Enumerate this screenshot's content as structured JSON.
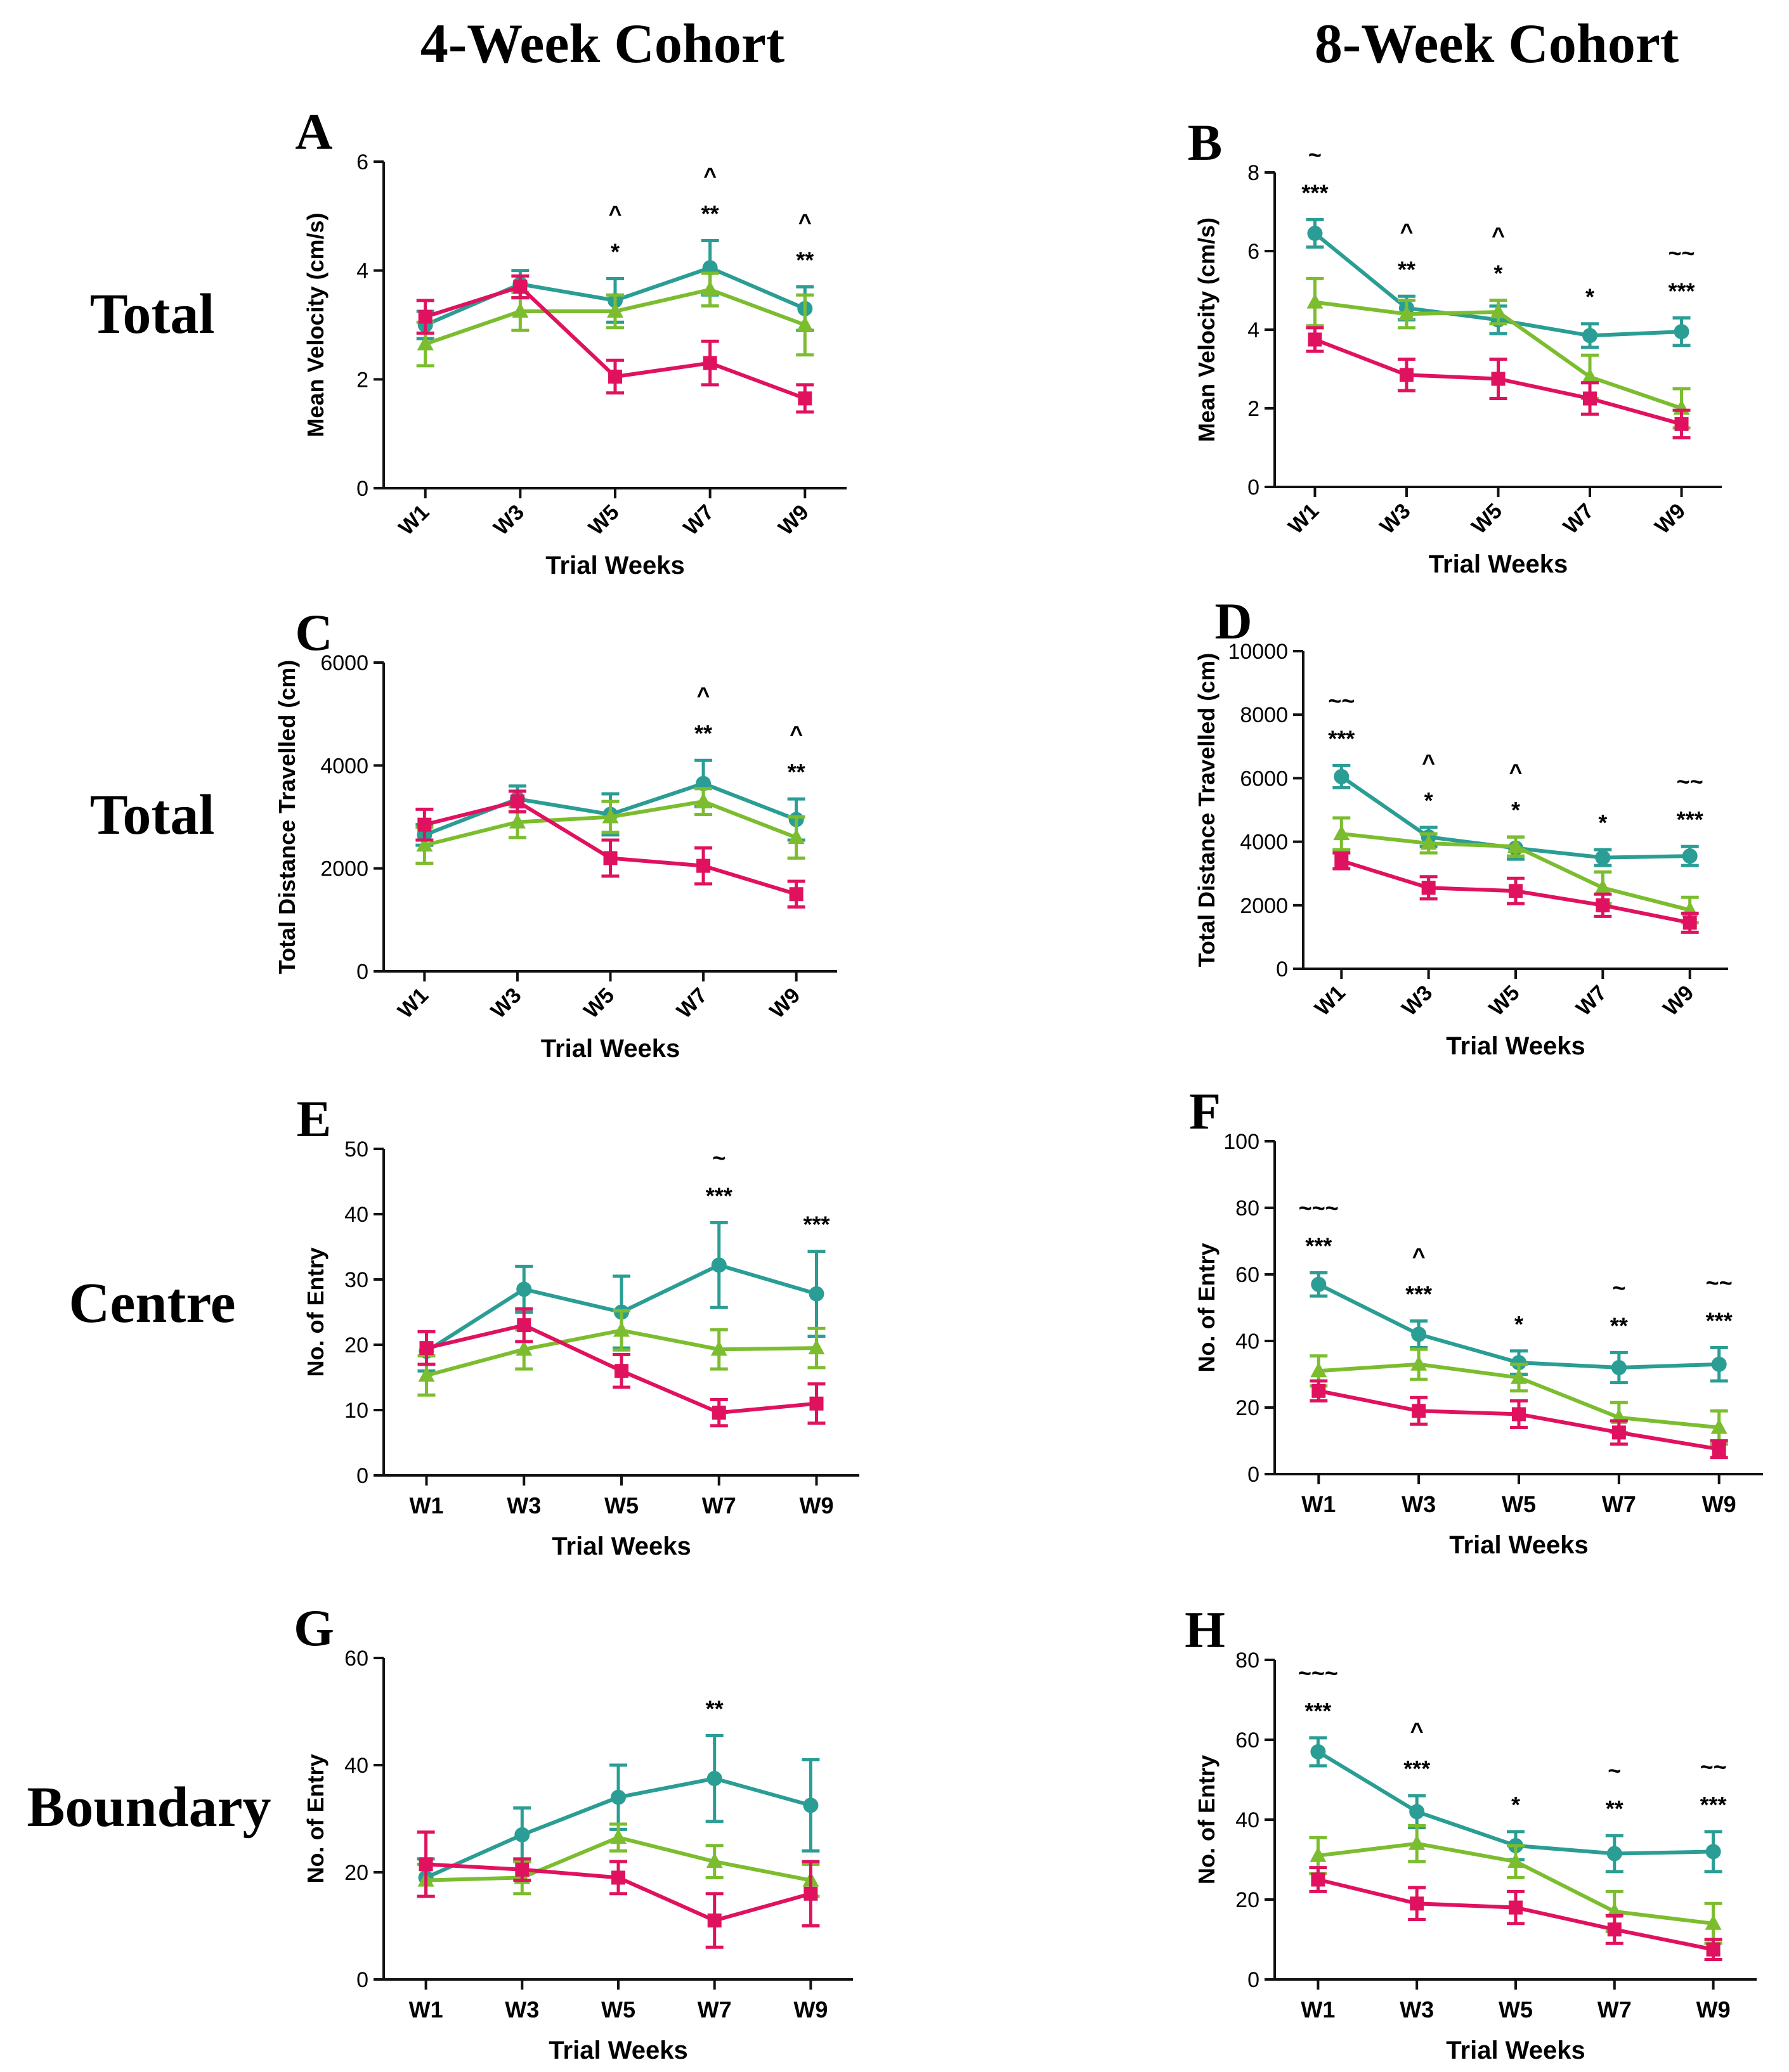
{
  "headers": {
    "left": "4-Week Cohort",
    "right": "8-Week Cohort"
  },
  "row_labels": [
    "Total",
    "Total",
    "Centre",
    "Boundary"
  ],
  "colors": {
    "teal": "#2a9d94",
    "green": "#7cbd2f",
    "magenta": "#e0125f"
  },
  "chart_data": [
    {
      "panel": "A",
      "type": "line",
      "xlabel": "Trial Weeks",
      "ylabel": "Mean Velocity (cm/s)",
      "categories": [
        "W1",
        "W3",
        "W5",
        "W7",
        "W9"
      ],
      "ylim": [
        0,
        6
      ],
      "yticks": [
        0,
        2,
        4,
        6
      ],
      "rotate_x": true,
      "series": [
        {
          "name": "teal",
          "marker": "circle",
          "values": [
            3.0,
            3.75,
            3.45,
            4.05,
            3.3
          ],
          "err": [
            0.25,
            0.25,
            0.4,
            0.5,
            0.4
          ]
        },
        {
          "name": "green",
          "marker": "triangle",
          "values": [
            2.65,
            3.25,
            3.25,
            3.65,
            3.0
          ],
          "err": [
            0.4,
            0.35,
            0.3,
            0.3,
            0.55
          ]
        },
        {
          "name": "magenta",
          "marker": "square",
          "values": [
            3.15,
            3.7,
            2.05,
            2.3,
            1.65
          ],
          "err": [
            0.3,
            0.2,
            0.3,
            0.4,
            0.25
          ]
        }
      ],
      "annotations": [
        {
          "x": "W5",
          "lines": [
            "^",
            "*"
          ]
        },
        {
          "x": "W7",
          "lines": [
            "^",
            "**"
          ]
        },
        {
          "x": "W9",
          "lines": [
            "^",
            "**"
          ]
        }
      ]
    },
    {
      "panel": "B",
      "type": "line",
      "xlabel": "Trial Weeks",
      "ylabel": "Mean Velocity (cm/s)",
      "categories": [
        "W1",
        "W3",
        "W5",
        "W7",
        "W9"
      ],
      "ylim": [
        0,
        8
      ],
      "yticks": [
        0,
        2,
        4,
        6,
        8
      ],
      "rotate_x": true,
      "series": [
        {
          "name": "teal",
          "marker": "circle",
          "values": [
            6.45,
            4.55,
            4.25,
            3.85,
            3.95
          ],
          "err": [
            0.35,
            0.3,
            0.35,
            0.3,
            0.35
          ]
        },
        {
          "name": "green",
          "marker": "triangle",
          "values": [
            4.7,
            4.4,
            4.45,
            2.8,
            2.0
          ],
          "err": [
            0.6,
            0.35,
            0.3,
            0.55,
            0.5
          ]
        },
        {
          "name": "magenta",
          "marker": "square",
          "values": [
            3.75,
            2.85,
            2.75,
            2.25,
            1.6
          ],
          "err": [
            0.3,
            0.4,
            0.5,
            0.4,
            0.35
          ]
        }
      ],
      "annotations": [
        {
          "x": "W1",
          "lines": [
            "~",
            "***"
          ]
        },
        {
          "x": "W3",
          "lines": [
            "^",
            "**"
          ]
        },
        {
          "x": "W5",
          "lines": [
            "^",
            "*"
          ]
        },
        {
          "x": "W7",
          "lines": [
            "*"
          ]
        },
        {
          "x": "W9",
          "lines": [
            "~~",
            "***"
          ]
        }
      ]
    },
    {
      "panel": "C",
      "type": "line",
      "xlabel": "Trial Weeks",
      "ylabel": "Total Distance Travelled (cm)",
      "categories": [
        "W1",
        "W3",
        "W5",
        "W7",
        "W9"
      ],
      "ylim": [
        0,
        6000
      ],
      "yticks": [
        0,
        2000,
        4000,
        6000
      ],
      "rotate_x": true,
      "series": [
        {
          "name": "teal",
          "marker": "circle",
          "values": [
            2650,
            3350,
            3050,
            3650,
            2950
          ],
          "err": [
            200,
            250,
            400,
            450,
            400
          ]
        },
        {
          "name": "green",
          "marker": "triangle",
          "values": [
            2450,
            2900,
            3000,
            3300,
            2600
          ],
          "err": [
            350,
            300,
            300,
            250,
            400
          ]
        },
        {
          "name": "magenta",
          "marker": "square",
          "values": [
            2850,
            3300,
            2200,
            2050,
            1500
          ],
          "err": [
            300,
            200,
            350,
            350,
            250
          ]
        }
      ],
      "annotations": [
        {
          "x": "W7",
          "lines": [
            "^",
            "**"
          ]
        },
        {
          "x": "W9",
          "lines": [
            "^",
            "**"
          ]
        }
      ]
    },
    {
      "panel": "D",
      "type": "line",
      "xlabel": "Trial Weeks",
      "ylabel": "Total Distance Travelled (cm)",
      "categories": [
        "W1",
        "W3",
        "W5",
        "W7",
        "W9"
      ],
      "ylim": [
        0,
        10000
      ],
      "yticks": [
        0,
        2000,
        4000,
        6000,
        8000,
        10000
      ],
      "rotate_x": true,
      "series": [
        {
          "name": "teal",
          "marker": "circle",
          "values": [
            6050,
            4150,
            3800,
            3500,
            3550
          ],
          "err": [
            350,
            300,
            350,
            250,
            300
          ]
        },
        {
          "name": "green",
          "marker": "triangle",
          "values": [
            4250,
            3950,
            3850,
            2550,
            1850
          ],
          "err": [
            500,
            300,
            300,
            500,
            400
          ]
        },
        {
          "name": "magenta",
          "marker": "square",
          "values": [
            3400,
            2550,
            2450,
            2000,
            1450
          ],
          "err": [
            250,
            350,
            400,
            350,
            300
          ]
        }
      ],
      "annotations": [
        {
          "x": "W1",
          "lines": [
            "~~",
            "***"
          ]
        },
        {
          "x": "W3",
          "lines": [
            "^",
            "*"
          ]
        },
        {
          "x": "W5",
          "lines": [
            "^",
            "*"
          ]
        },
        {
          "x": "W7",
          "lines": [
            "*"
          ]
        },
        {
          "x": "W9",
          "lines": [
            "~~",
            "***"
          ]
        }
      ]
    },
    {
      "panel": "E",
      "type": "line",
      "xlabel": "Trial Weeks",
      "ylabel": "No. of Entry",
      "categories": [
        "W1",
        "W3",
        "W5",
        "W7",
        "W9"
      ],
      "ylim": [
        0,
        50
      ],
      "yticks": [
        0,
        10,
        20,
        30,
        40,
        50
      ],
      "rotate_x": false,
      "series": [
        {
          "name": "teal",
          "marker": "circle",
          "values": [
            19,
            28.5,
            25,
            32.2,
            27.8
          ],
          "err": [
            3,
            3.5,
            5.5,
            6.5,
            6.5
          ]
        },
        {
          "name": "green",
          "marker": "triangle",
          "values": [
            15.3,
            19.3,
            22.2,
            19.3,
            19.5
          ],
          "err": [
            3,
            3,
            3,
            3,
            3
          ]
        },
        {
          "name": "magenta",
          "marker": "square",
          "values": [
            19.5,
            23.0,
            16.0,
            9.6,
            11.0
          ],
          "err": [
            2.5,
            2.5,
            2.5,
            2,
            3
          ]
        }
      ],
      "annotations": [
        {
          "x": "W7",
          "lines": [
            "~",
            "***"
          ]
        },
        {
          "x": "W9",
          "lines": [
            "***"
          ]
        }
      ]
    },
    {
      "panel": "F",
      "type": "line",
      "xlabel": "Trial Weeks",
      "ylabel": "No. of Entry",
      "categories": [
        "W1",
        "W3",
        "W5",
        "W7",
        "W9"
      ],
      "ylim": [
        0,
        100
      ],
      "yticks": [
        0,
        20,
        40,
        60,
        80,
        100
      ],
      "rotate_x": false,
      "series": [
        {
          "name": "teal",
          "marker": "circle",
          "values": [
            57,
            42,
            33.5,
            32,
            33
          ],
          "err": [
            3.5,
            4,
            3.5,
            4.5,
            5
          ]
        },
        {
          "name": "green",
          "marker": "triangle",
          "values": [
            31,
            33,
            29,
            17,
            14
          ],
          "err": [
            4.5,
            4.5,
            4,
            4.5,
            5
          ]
        },
        {
          "name": "magenta",
          "marker": "square",
          "values": [
            25,
            19,
            18,
            12.5,
            7.5
          ],
          "err": [
            3,
            4,
            4,
            3.5,
            2.5
          ]
        }
      ],
      "annotations": [
        {
          "x": "W1",
          "lines": [
            "~~~",
            "***"
          ]
        },
        {
          "x": "W3",
          "lines": [
            "^",
            "***"
          ]
        },
        {
          "x": "W5",
          "lines": [
            "*"
          ]
        },
        {
          "x": "W7",
          "lines": [
            "~",
            "**"
          ]
        },
        {
          "x": "W9",
          "lines": [
            "~~",
            "***"
          ]
        }
      ]
    },
    {
      "panel": "G",
      "type": "line",
      "xlabel": "Trial Weeks",
      "ylabel": "No. of Entry",
      "categories": [
        "W1",
        "W3",
        "W5",
        "W7",
        "W9"
      ],
      "ylim": [
        0,
        60
      ],
      "yticks": [
        0,
        20,
        40,
        60
      ],
      "rotate_x": false,
      "series": [
        {
          "name": "teal",
          "marker": "circle",
          "values": [
            19,
            27,
            34,
            37.5,
            32.5
          ],
          "err": [
            3.5,
            5,
            6,
            8,
            8.5
          ]
        },
        {
          "name": "green",
          "marker": "triangle",
          "values": [
            18.5,
            19,
            26.5,
            22,
            18.5
          ],
          "err": [
            3,
            3,
            2.5,
            3,
            3
          ]
        },
        {
          "name": "magenta",
          "marker": "square",
          "values": [
            21.5,
            20.5,
            19,
            11,
            16
          ],
          "err": [
            6,
            2,
            3,
            5,
            6
          ]
        }
      ],
      "annotations": [
        {
          "x": "W7",
          "lines": [
            "**"
          ]
        }
      ]
    },
    {
      "panel": "H",
      "type": "line",
      "xlabel": "Trial Weeks",
      "ylabel": "No. of Entry",
      "categories": [
        "W1",
        "W3",
        "W5",
        "W7",
        "W9"
      ],
      "ylim": [
        0,
        80
      ],
      "yticks": [
        0,
        20,
        40,
        60,
        80
      ],
      "rotate_x": false,
      "series": [
        {
          "name": "teal",
          "marker": "circle",
          "values": [
            57,
            42,
            33.5,
            31.5,
            32
          ],
          "err": [
            3.5,
            4,
            3.5,
            4.5,
            5
          ]
        },
        {
          "name": "green",
          "marker": "triangle",
          "values": [
            31,
            34,
            29.5,
            17,
            14
          ],
          "err": [
            4.5,
            4.5,
            4,
            5,
            5
          ]
        },
        {
          "name": "magenta",
          "marker": "square",
          "values": [
            25,
            19,
            18,
            12.5,
            7.5
          ],
          "err": [
            3,
            4,
            4,
            3.5,
            2.5
          ]
        }
      ],
      "annotations": [
        {
          "x": "W1",
          "lines": [
            "~~~",
            "***"
          ]
        },
        {
          "x": "W3",
          "lines": [
            "^",
            "***"
          ]
        },
        {
          "x": "W5",
          "lines": [
            "*"
          ]
        },
        {
          "x": "W7",
          "lines": [
            "~",
            "**"
          ]
        },
        {
          "x": "W9",
          "lines": [
            "~~",
            "***"
          ]
        }
      ]
    }
  ]
}
